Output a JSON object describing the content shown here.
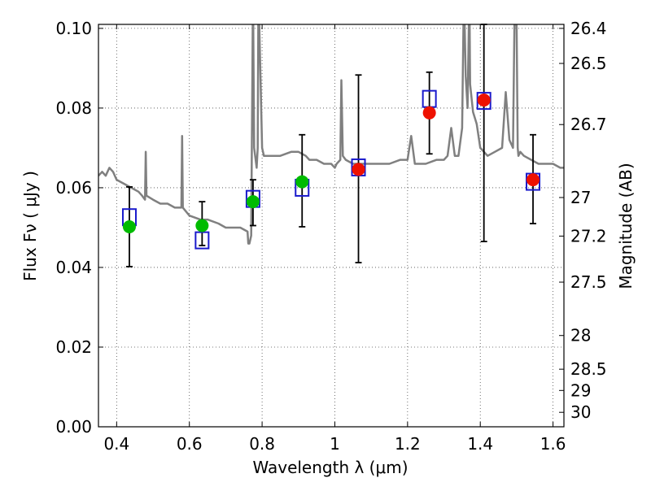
{
  "chart_data": {
    "type": "scatter",
    "xlabel": "Wavelength  λ (μm)",
    "ylabel_left": "Flux  Fν  ( μJy )",
    "ylabel_right": "Magnitude (AB)",
    "xlim": [
      0.35,
      1.63
    ],
    "ylim": [
      0.0,
      0.101
    ],
    "x_ticks": [
      0.4,
      0.6,
      0.8,
      1.0,
      1.2,
      1.4,
      1.6
    ],
    "x_tick_labels": [
      "0.4",
      "0.6",
      "0.8",
      "1",
      "1.2",
      "1.4",
      "1.6"
    ],
    "y_ticks": [
      0.0,
      0.02,
      0.04,
      0.06,
      0.08,
      0.1
    ],
    "y_tick_labels": [
      "0.00",
      "0.02",
      "0.04",
      "0.06",
      "0.08",
      "0.10"
    ],
    "right_ticks": [
      {
        "mag": 26.4,
        "label": "26.4"
      },
      {
        "mag": 26.5,
        "label": "26.5"
      },
      {
        "mag": 26.7,
        "label": "26.7"
      },
      {
        "mag": 27.0,
        "label": "27"
      },
      {
        "mag": 27.2,
        "label": "27.2"
      },
      {
        "mag": 27.5,
        "label": "27.5"
      },
      {
        "mag": 28.0,
        "label": "28"
      },
      {
        "mag": 28.5,
        "label": "28.5"
      },
      {
        "mag": 29.0,
        "label": "29"
      },
      {
        "mag": 30.0,
        "label": "30"
      }
    ],
    "grid": true,
    "observed": [
      {
        "x": 0.435,
        "y": 0.0502,
        "err_low": 0.0402,
        "err_high": 0.0602,
        "color": "#00bb00"
      },
      {
        "x": 0.635,
        "y": 0.0505,
        "err_low": 0.0455,
        "err_high": 0.0565,
        "color": "#00bb00"
      },
      {
        "x": 0.775,
        "y": 0.0565,
        "err_low": 0.0505,
        "err_high": 0.062,
        "color": "#00bb00"
      },
      {
        "x": 0.91,
        "y": 0.0615,
        "err_low": 0.0502,
        "err_high": 0.0733,
        "color": "#00bb00"
      },
      {
        "x": 1.065,
        "y": 0.0646,
        "err_low": 0.0412,
        "err_high": 0.0883,
        "color": "#ee1100"
      },
      {
        "x": 1.26,
        "y": 0.0788,
        "err_low": 0.0685,
        "err_high": 0.089,
        "color": "#ee1100"
      },
      {
        "x": 1.41,
        "y": 0.082,
        "err_low": 0.0465,
        "err_high": 0.101,
        "color": "#ee1100"
      },
      {
        "x": 1.545,
        "y": 0.062,
        "err_low": 0.051,
        "err_high": 0.0733,
        "color": "#ee1100"
      }
    ],
    "model_points": [
      {
        "x": 0.435,
        "y": 0.0526
      },
      {
        "x": 0.635,
        "y": 0.0468
      },
      {
        "x": 0.775,
        "y": 0.0572
      },
      {
        "x": 0.91,
        "y": 0.06
      },
      {
        "x": 1.065,
        "y": 0.0651
      },
      {
        "x": 1.26,
        "y": 0.0823
      },
      {
        "x": 1.41,
        "y": 0.0818
      },
      {
        "x": 1.545,
        "y": 0.0615
      }
    ],
    "sed_curve": {
      "color": "#808080",
      "x": [
        0.35,
        0.36,
        0.37,
        0.38,
        0.39,
        0.4,
        0.42,
        0.44,
        0.46,
        0.47,
        0.478,
        0.48,
        0.482,
        0.5,
        0.52,
        0.54,
        0.56,
        0.578,
        0.58,
        0.582,
        0.6,
        0.63,
        0.65,
        0.68,
        0.7,
        0.72,
        0.74,
        0.76,
        0.762,
        0.765,
        0.77,
        0.775,
        0.778,
        0.785,
        0.788,
        0.79,
        0.8,
        0.805,
        0.808,
        0.81,
        0.815,
        0.83,
        0.85,
        0.88,
        0.9,
        0.92,
        0.93,
        0.95,
        0.97,
        0.99,
        1.0,
        1.005,
        1.015,
        1.018,
        1.022,
        1.03,
        1.05,
        1.07,
        1.09,
        1.11,
        1.13,
        1.15,
        1.18,
        1.2,
        1.21,
        1.22,
        1.25,
        1.28,
        1.3,
        1.31,
        1.32,
        1.33,
        1.34,
        1.35,
        1.355,
        1.36,
        1.365,
        1.37,
        1.372,
        1.38,
        1.39,
        1.4,
        1.42,
        1.44,
        1.46,
        1.47,
        1.48,
        1.49,
        1.495,
        1.5,
        1.503,
        1.505,
        1.51,
        1.52,
        1.54,
        1.56,
        1.58,
        1.6,
        1.62,
        1.63
      ],
      "y": [
        0.063,
        0.064,
        0.063,
        0.065,
        0.064,
        0.062,
        0.061,
        0.06,
        0.059,
        0.058,
        0.057,
        0.069,
        0.058,
        0.057,
        0.056,
        0.056,
        0.055,
        0.055,
        0.073,
        0.055,
        0.053,
        0.052,
        0.052,
        0.051,
        0.05,
        0.05,
        0.05,
        0.049,
        0.046,
        0.046,
        0.048,
        0.11,
        0.07,
        0.065,
        0.07,
        0.11,
        0.07,
        0.068,
        0.068,
        0.068,
        0.068,
        0.068,
        0.068,
        0.069,
        0.069,
        0.068,
        0.067,
        0.067,
        0.066,
        0.066,
        0.065,
        0.066,
        0.067,
        0.087,
        0.068,
        0.067,
        0.066,
        0.066,
        0.066,
        0.066,
        0.066,
        0.066,
        0.067,
        0.067,
        0.073,
        0.066,
        0.066,
        0.067,
        0.067,
        0.068,
        0.075,
        0.068,
        0.068,
        0.075,
        0.11,
        0.088,
        0.08,
        0.11,
        0.086,
        0.079,
        0.076,
        0.07,
        0.068,
        0.069,
        0.07,
        0.084,
        0.072,
        0.07,
        0.11,
        0.1,
        0.07,
        0.068,
        0.069,
        0.068,
        0.067,
        0.066,
        0.066,
        0.066,
        0.065,
        0.065
      ]
    }
  }
}
